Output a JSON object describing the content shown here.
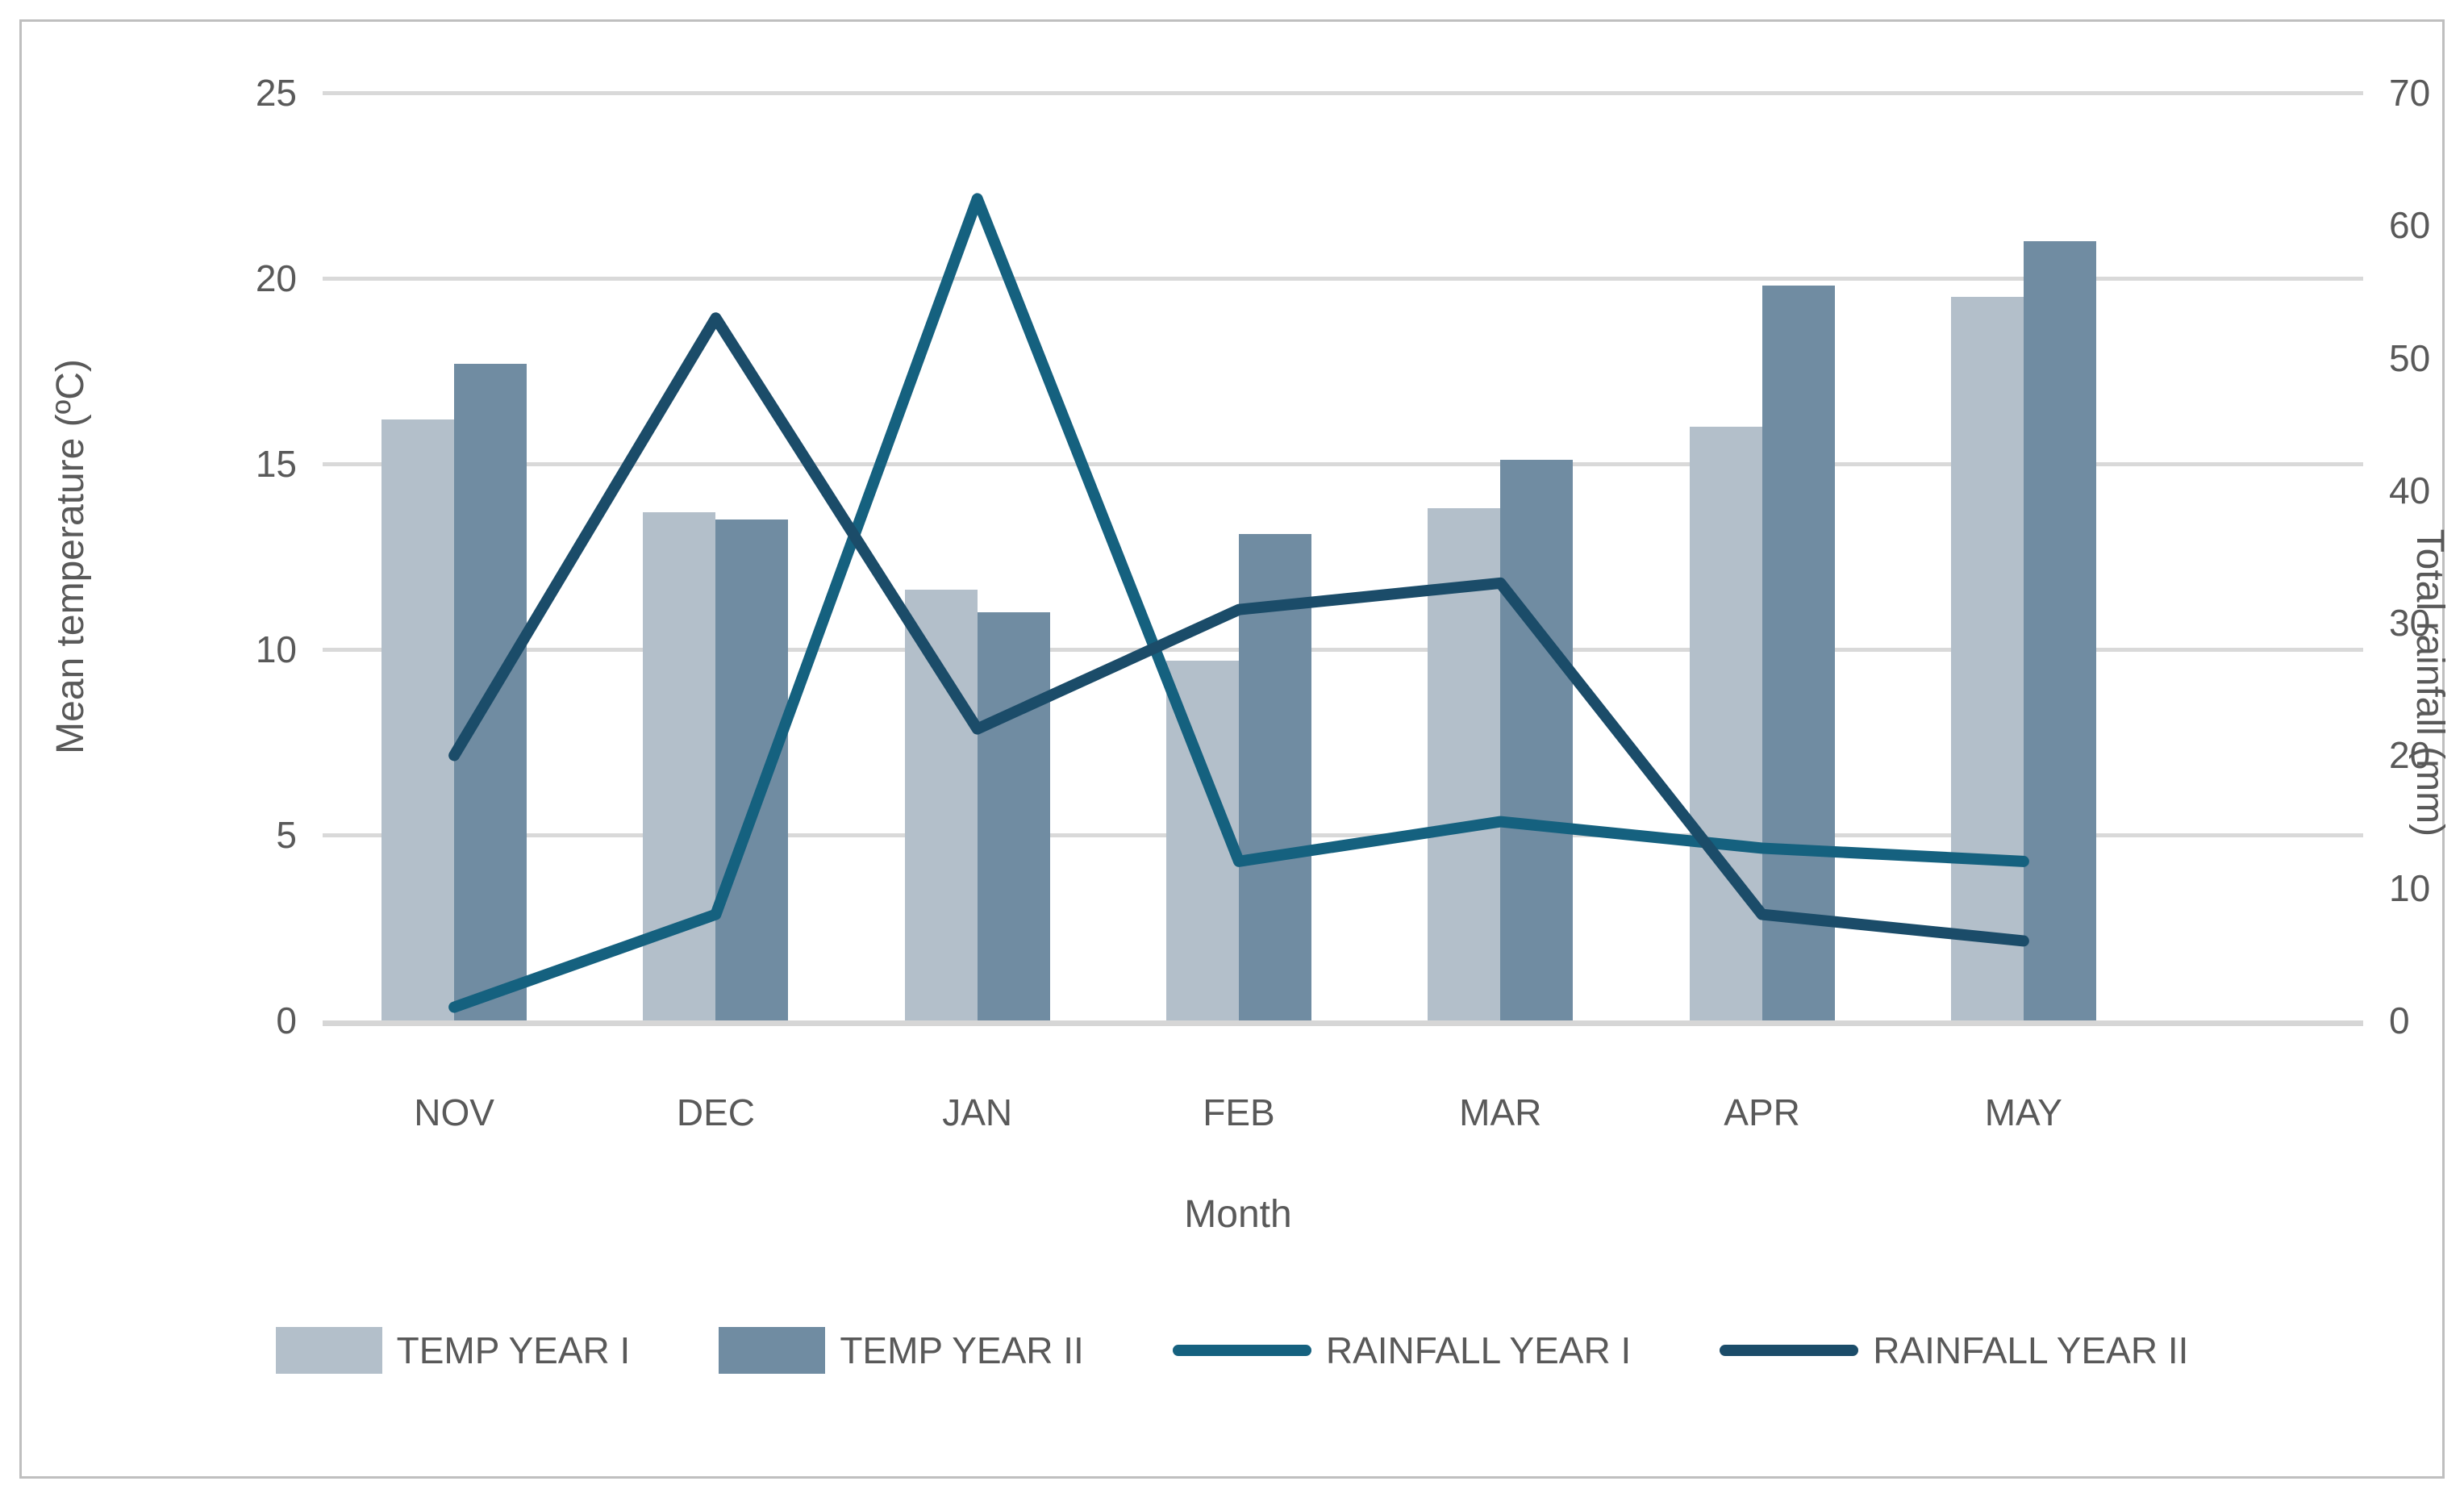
{
  "figure": {
    "background": "#ffffff",
    "border_color": "#bfbfbf",
    "text_color": "#595959",
    "gridline_color": "#d9d9d9"
  },
  "chart_data": {
    "type": "combo-bar-line",
    "title": "",
    "categories": [
      "NOV",
      "DEC",
      "JAN",
      "FEB",
      "MAR",
      "APR",
      "MAY"
    ],
    "series": [
      {
        "name": "TEMP YEAR I",
        "type": "bar",
        "axis": "left",
        "color": "#b3bfca",
        "values": [
          16.2,
          13.7,
          11.6,
          9.7,
          13.8,
          16.0,
          19.5
        ]
      },
      {
        "name": "TEMP YEAR II",
        "type": "bar",
        "axis": "left",
        "color": "#708ca2",
        "values": [
          17.7,
          13.5,
          11.0,
          13.1,
          15.1,
          19.8,
          21.0
        ]
      },
      {
        "name": "RAINFALL YEAR I",
        "type": "line",
        "axis": "right",
        "color": "#15617f",
        "values": [
          1,
          8,
          62,
          12,
          15,
          13,
          12
        ]
      },
      {
        "name": "RAINFALL YEAR II",
        "type": "line",
        "axis": "right",
        "color": "#1b4c69",
        "values": [
          20,
          53,
          22,
          31,
          33,
          8,
          6
        ]
      }
    ],
    "left_axis": {
      "label": "Mean temperature (ºC)",
      "min": 0,
      "max": 25,
      "step": 5,
      "ticks": [
        0,
        5,
        10,
        15,
        20,
        25
      ]
    },
    "right_axis": {
      "label": "Total rainfall (mm)",
      "min": 0,
      "max": 70,
      "step": 10,
      "ticks": [
        0,
        10,
        20,
        30,
        40,
        50,
        60,
        70
      ]
    },
    "x_axis_label": "Month",
    "grid": true,
    "legend_position": "bottom"
  }
}
